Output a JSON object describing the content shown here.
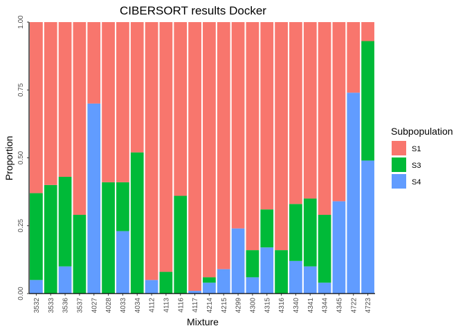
{
  "chart_data": {
    "type": "bar",
    "stacked": true,
    "title": "CIBERSORT results Docker",
    "xlabel": "Mixture",
    "ylabel": "Proportion",
    "ylim": [
      0,
      1
    ],
    "yticks": [
      "0.00",
      "0.25",
      "0.50",
      "0.75",
      "1.00"
    ],
    "grid": false,
    "legend": {
      "title": "Subpopulation",
      "position": "right"
    },
    "categories": [
      "3532",
      "3533",
      "3536",
      "3537",
      "4027",
      "4028",
      "4033",
      "4034",
      "4112",
      "4113",
      "4116",
      "4117",
      "4214",
      "4215",
      "4299",
      "4300",
      "4315",
      "4316",
      "4340",
      "4341",
      "4344",
      "4345",
      "4722",
      "4723"
    ],
    "series": [
      {
        "name": "S4",
        "color": "#619CFF",
        "values": [
          0.05,
          0.0,
          0.1,
          0.0,
          0.7,
          0.0,
          0.23,
          0.0,
          0.05,
          0.0,
          0.0,
          0.01,
          0.04,
          0.09,
          0.24,
          0.06,
          0.17,
          0.0,
          0.12,
          0.1,
          0.04,
          0.34,
          0.74,
          0.49
        ]
      },
      {
        "name": "S3",
        "color": "#00BA38",
        "values": [
          0.32,
          0.4,
          0.33,
          0.29,
          0.0,
          0.41,
          0.18,
          0.52,
          0.0,
          0.08,
          0.36,
          0.0,
          0.02,
          0.0,
          0.0,
          0.1,
          0.14,
          0.16,
          0.21,
          0.25,
          0.25,
          0.0,
          0.0,
          0.44
        ]
      },
      {
        "name": "S1",
        "color": "#F8766D",
        "values": [
          0.63,
          0.6,
          0.57,
          0.71,
          0.3,
          0.59,
          0.59,
          0.48,
          0.95,
          0.92,
          0.64,
          0.99,
          0.94,
          0.91,
          0.76,
          0.84,
          0.69,
          0.84,
          0.67,
          0.65,
          0.71,
          0.66,
          0.26,
          0.07
        ]
      }
    ],
    "legend_order": [
      "S1",
      "S3",
      "S4"
    ]
  }
}
